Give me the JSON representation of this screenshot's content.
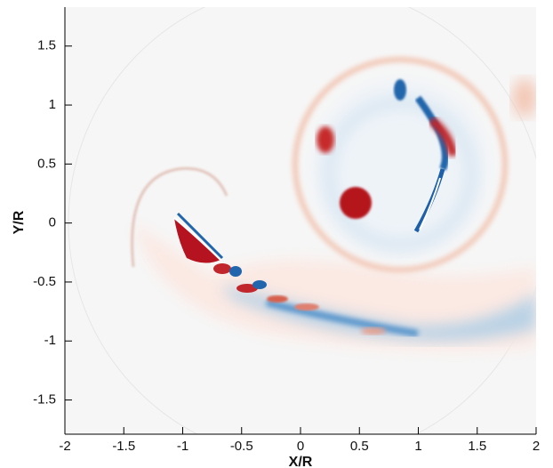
{
  "chart_data": {
    "type": "contour",
    "xlabel": "X/R",
    "ylabel": "Y/R",
    "xlim": [
      -2,
      2
    ],
    "ylim": [
      -1.79,
      1.83
    ],
    "xticks": [
      -2,
      -1.5,
      -1,
      -0.5,
      0,
      0.5,
      1,
      1.5,
      2
    ],
    "yticks": [
      -1.5,
      -1,
      -0.5,
      0,
      0.5,
      1,
      1.5
    ]
  }
}
